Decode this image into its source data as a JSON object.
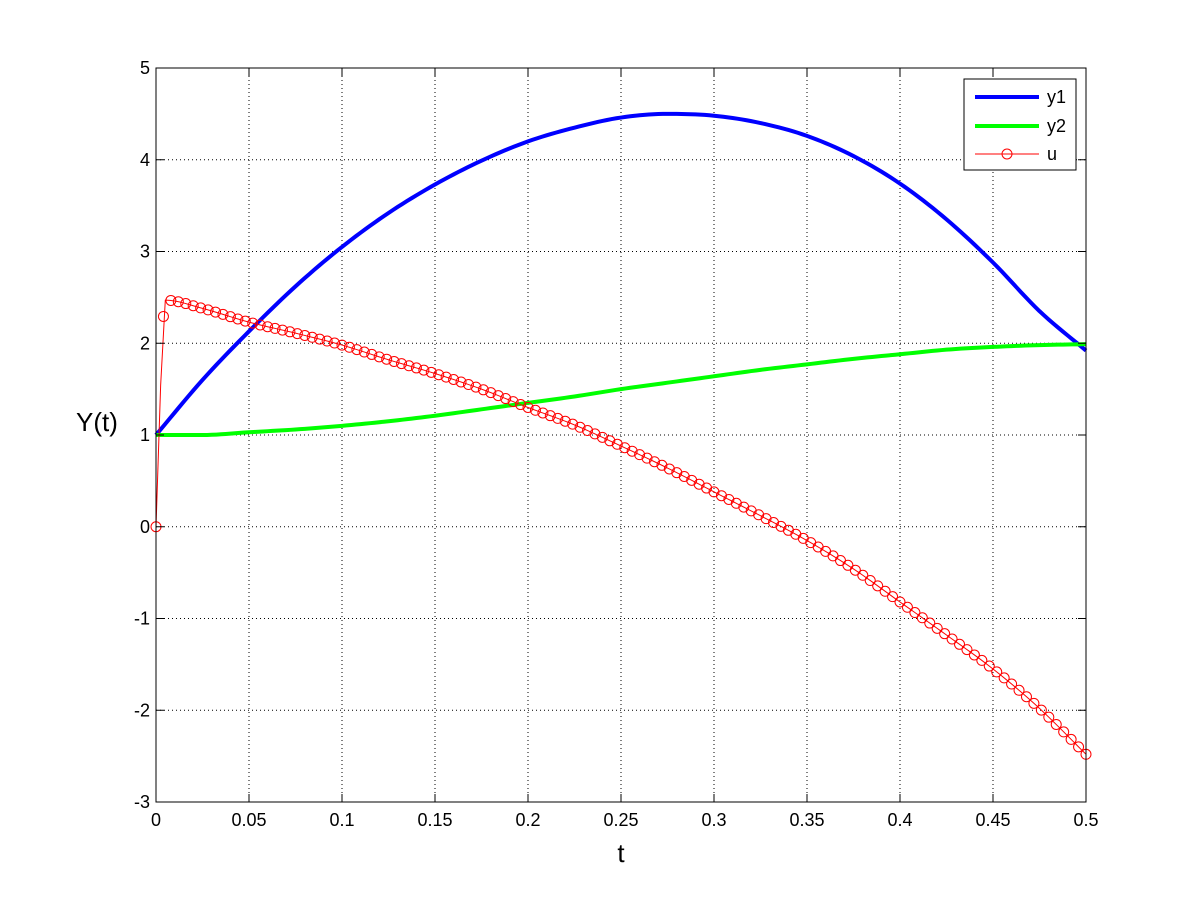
{
  "chart_data": {
    "type": "line",
    "title": "",
    "xlabel": "t",
    "ylabel": "Y(t)",
    "xlim": [
      0,
      0.5
    ],
    "ylim": [
      -3,
      5
    ],
    "xticks": [
      0,
      0.05,
      0.1,
      0.15,
      0.2,
      0.25,
      0.3,
      0.35,
      0.4,
      0.45,
      0.5
    ],
    "xtick_labels": [
      "0",
      "0.05",
      "0.1",
      "0.15",
      "0.2",
      "0.25",
      "0.3",
      "0.35",
      "0.4",
      "0.45",
      "0.5"
    ],
    "yticks": [
      -3,
      -2,
      -1,
      0,
      1,
      2,
      3,
      4,
      5
    ],
    "ytick_labels": [
      "-3",
      "-2",
      "-1",
      "0",
      "1",
      "2",
      "3",
      "4",
      "5"
    ],
    "grid": true,
    "legend_position": "top-right",
    "series": [
      {
        "name": "y1",
        "color": "#0000ff",
        "line_style": "solid",
        "marker": "none",
        "x": [
          0,
          0.025,
          0.05,
          0.075,
          0.1,
          0.125,
          0.15,
          0.175,
          0.2,
          0.225,
          0.25,
          0.275,
          0.3,
          0.325,
          0.35,
          0.375,
          0.4,
          0.425,
          0.45,
          0.475,
          0.5
        ],
        "y": [
          1.0,
          1.6,
          2.13,
          2.62,
          3.05,
          3.42,
          3.73,
          3.99,
          4.2,
          4.35,
          4.46,
          4.5,
          4.48,
          4.4,
          4.26,
          4.04,
          3.74,
          3.35,
          2.88,
          2.35,
          1.92
        ]
      },
      {
        "name": "y2",
        "color": "#00ff00",
        "line_style": "solid",
        "marker": "none",
        "x": [
          0,
          0.025,
          0.05,
          0.075,
          0.1,
          0.125,
          0.15,
          0.175,
          0.2,
          0.225,
          0.25,
          0.275,
          0.3,
          0.325,
          0.35,
          0.375,
          0.4,
          0.425,
          0.45,
          0.475,
          0.5
        ],
        "y": [
          1.0,
          1.0,
          1.03,
          1.06,
          1.1,
          1.15,
          1.21,
          1.28,
          1.35,
          1.42,
          1.5,
          1.57,
          1.64,
          1.71,
          1.77,
          1.83,
          1.88,
          1.93,
          1.96,
          1.98,
          1.99
        ]
      },
      {
        "name": "u",
        "color": "#ff0000",
        "line_style": "solid",
        "marker": "circle",
        "x": [
          0,
          0.005,
          0.025,
          0.05,
          0.075,
          0.1,
          0.125,
          0.15,
          0.175,
          0.2,
          0.225,
          0.25,
          0.275,
          0.3,
          0.325,
          0.35,
          0.375,
          0.4,
          0.425,
          0.45,
          0.475,
          0.5
        ],
        "y": [
          0,
          2.47,
          2.38,
          2.23,
          2.11,
          1.98,
          1.82,
          1.67,
          1.5,
          1.3,
          1.11,
          0.88,
          0.64,
          0.38,
          0.12,
          -0.15,
          -0.46,
          -0.82,
          -1.18,
          -1.55,
          -1.98,
          -2.48
        ]
      }
    ]
  }
}
